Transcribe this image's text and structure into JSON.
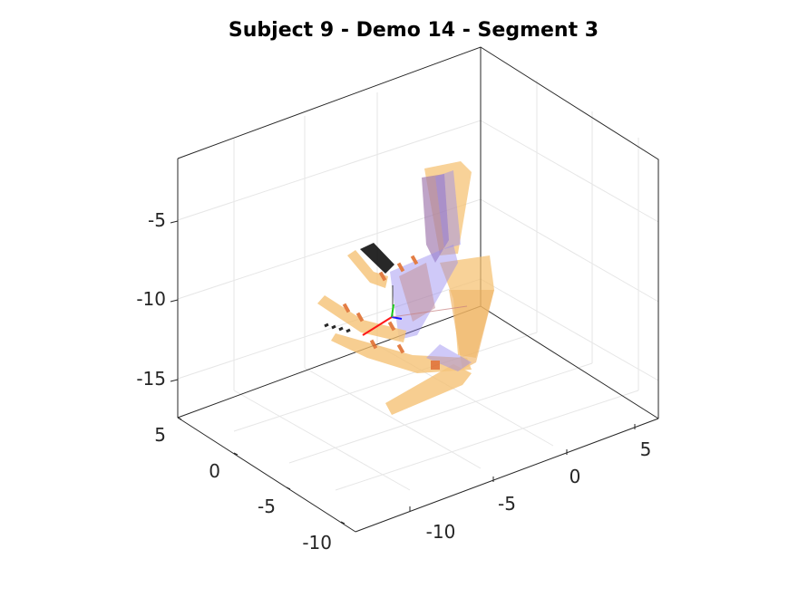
{
  "chart_data": {
    "type": "scatter",
    "projection": "3d",
    "title": "Subject 9 - Demo 14 - Segment 3",
    "xlabel": "",
    "ylabel": "",
    "zlabel": "",
    "grid": true,
    "box": true,
    "x_ticks": [
      -10,
      -5,
      0,
      5
    ],
    "y_ticks": [
      -10,
      -5,
      0,
      5
    ],
    "z_ticks": [
      -5,
      -10,
      -15
    ],
    "x_tick_labels": [
      "-10",
      "-5",
      "0",
      "5"
    ],
    "y_tick_labels": [
      "-10",
      "-5",
      "0",
      "5"
    ],
    "z_tick_labels": [
      "-5",
      "-10",
      "-15"
    ],
    "colors": {
      "axis": "#262626",
      "grid": "#e6e6e6",
      "body_segments": "#f5c070",
      "overlay_segments": "#8a7cf0",
      "markers": "#e07030",
      "dark_markers": "#111111",
      "frame_x": "#ff0000",
      "frame_y": "#00c000",
      "frame_z": "#0000ff"
    }
  }
}
